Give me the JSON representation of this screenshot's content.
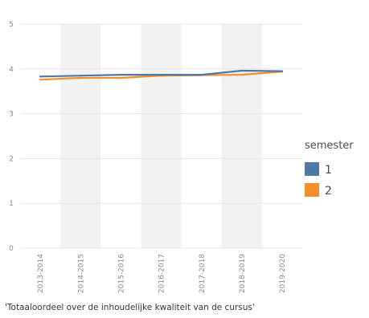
{
  "colors": {
    "series_1": "#4e79a7",
    "series_2": "#f28e2b",
    "band": "#f2f2f2",
    "grid": "#e6e6e6",
    "tick_text": "#8a8a8a"
  },
  "chart_data": {
    "type": "line",
    "title": "",
    "xlabel": "",
    "ylabel": "",
    "x": [
      "2013-2014",
      "2014-2015",
      "2015-2016",
      "2016-2017",
      "2017-2018",
      "2018-2019",
      "2019-2020"
    ],
    "ylim": [
      0,
      5
    ],
    "yticks": [
      0,
      1,
      2,
      3,
      4,
      5
    ],
    "grid": true,
    "alternating_bands": true,
    "legend": {
      "title": "semester",
      "placement": "right"
    },
    "series": [
      {
        "name": "1",
        "color": "#4e79a7",
        "values": [
          3.83,
          3.85,
          3.87,
          3.87,
          3.87,
          3.96,
          3.95
        ]
      },
      {
        "name": "2",
        "color": "#f28e2b",
        "values": [
          3.76,
          3.8,
          3.8,
          3.85,
          3.86,
          3.87,
          3.94
        ]
      }
    ],
    "caption": "'Totaaloordeel over de inhoudelijke kwaliteit van de cursus'"
  }
}
